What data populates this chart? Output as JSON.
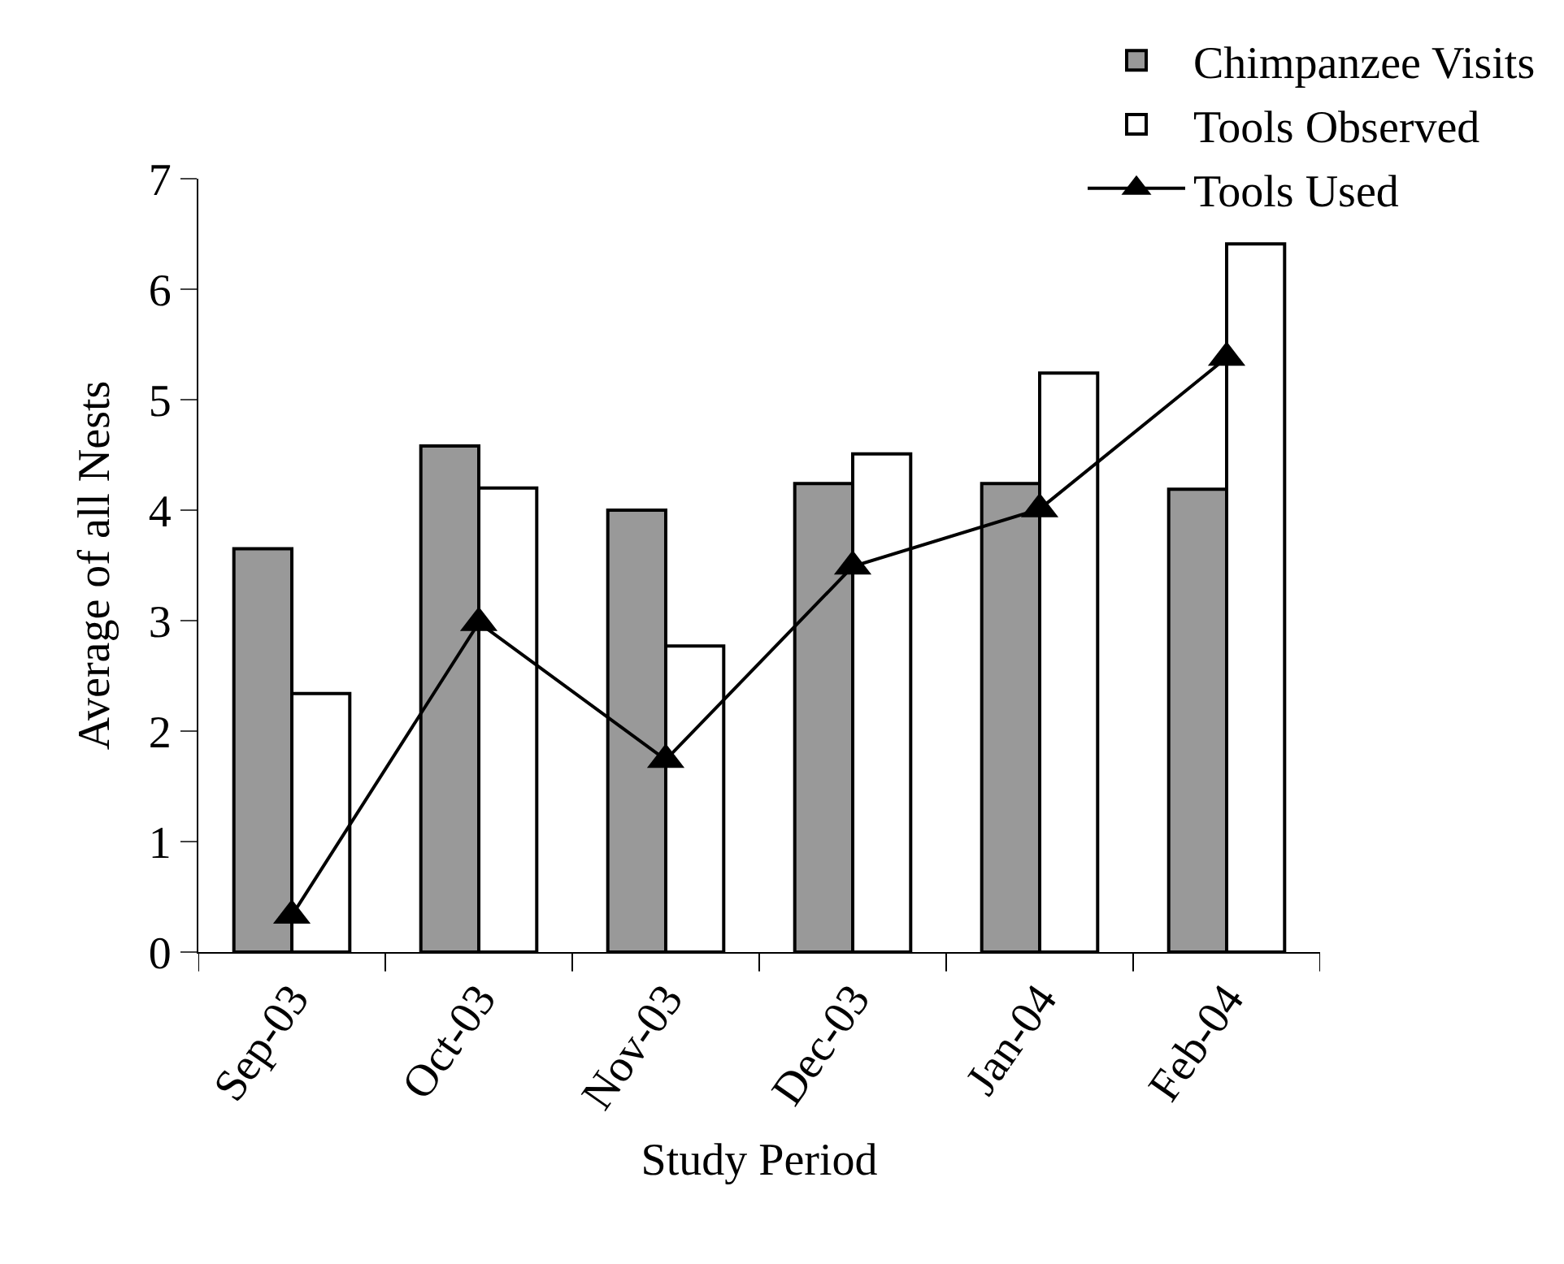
{
  "chart_data": {
    "type": "bar",
    "xlabel": "Study Period",
    "ylabel": "Average of all Nests",
    "categories": [
      "Sep-03",
      "Oct-03",
      "Nov-03",
      "Dec-03",
      "Jan-04",
      "Feb-04"
    ],
    "series": [
      {
        "name": "Chimpanzee Visits",
        "color": "#999999",
        "values": [
          3.65,
          4.58,
          4.0,
          4.24,
          4.24,
          4.19
        ]
      },
      {
        "name": "Tools Observed",
        "color": "#ffffff",
        "values": [
          2.34,
          4.2,
          2.77,
          4.51,
          5.24,
          6.41
        ]
      },
      {
        "name": "Tools Used",
        "type": "line",
        "color": "#000000",
        "marker": "triangle",
        "line_style": "solid",
        "values": [
          0.33,
          2.98,
          1.74,
          3.49,
          4.01,
          5.38
        ]
      }
    ],
    "ylim": [
      0,
      7
    ],
    "yticks": [
      0,
      1,
      2,
      3,
      4,
      5,
      6,
      7
    ],
    "grid": false,
    "legend": "top right"
  }
}
